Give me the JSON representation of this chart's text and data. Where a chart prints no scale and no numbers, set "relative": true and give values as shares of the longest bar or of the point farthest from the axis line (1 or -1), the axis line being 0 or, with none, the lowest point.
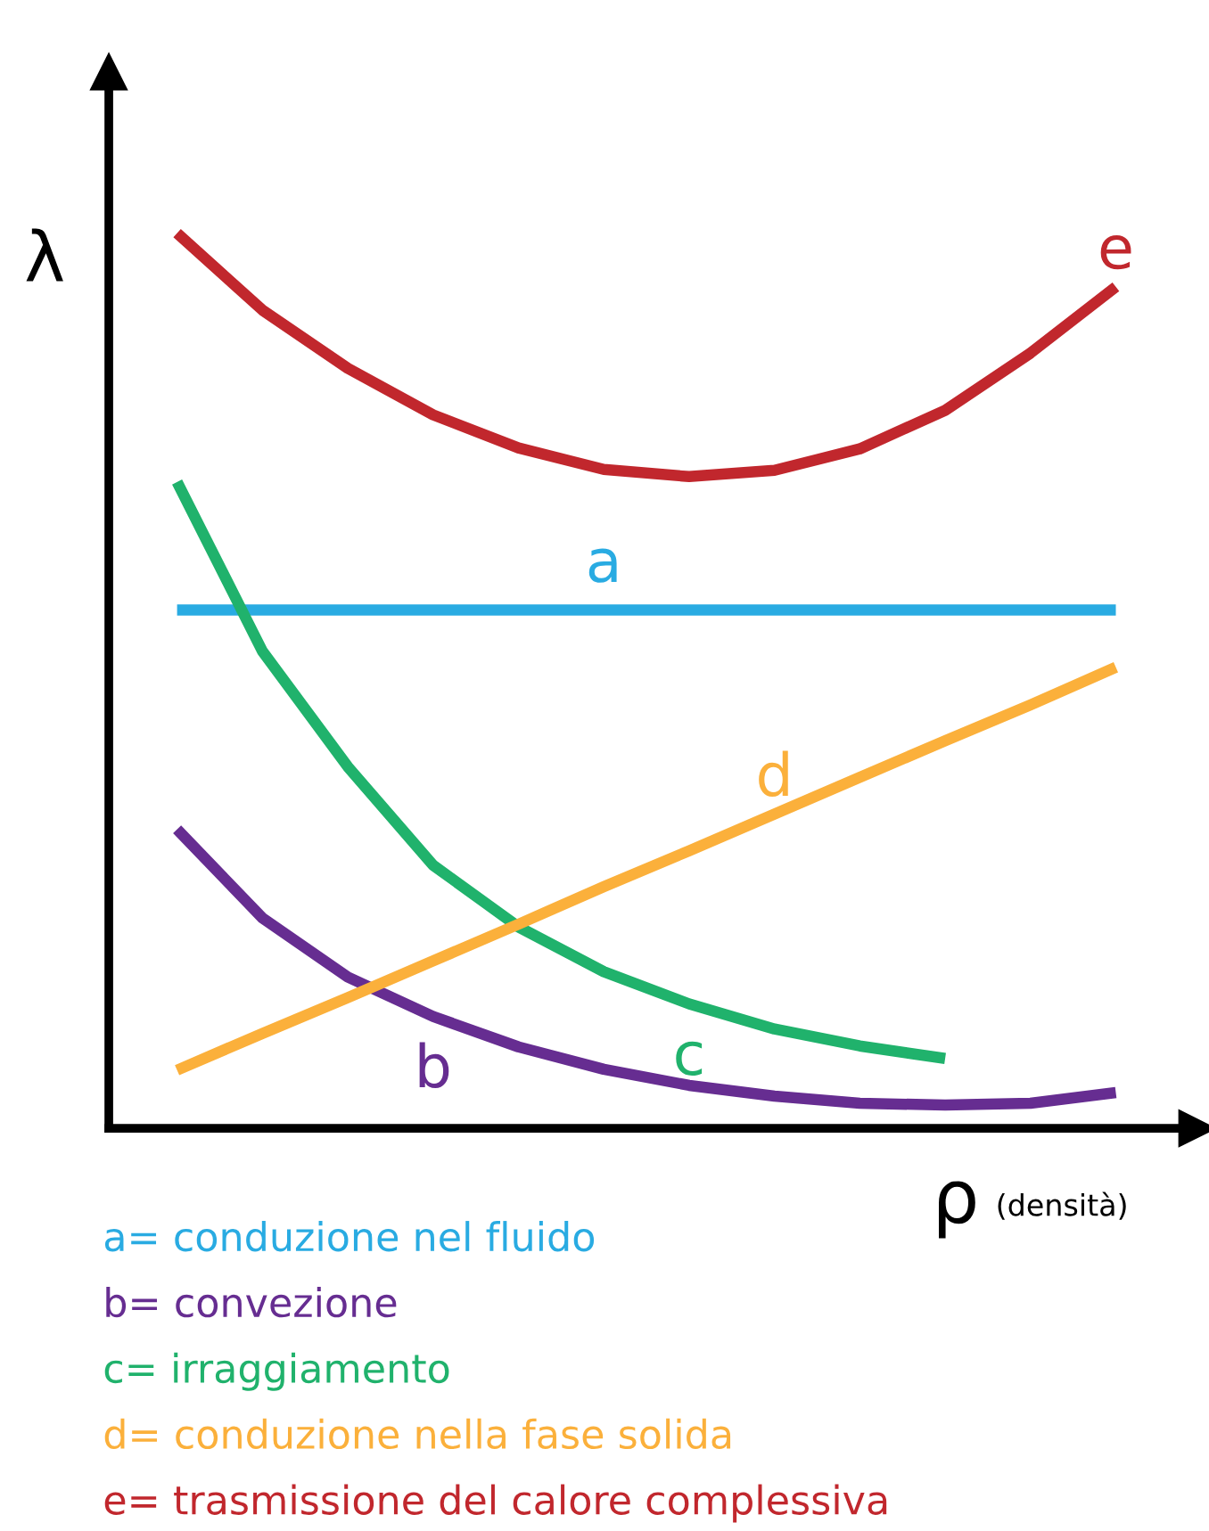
{
  "chart_data": {
    "type": "line",
    "relative": true,
    "xlabel": "ρ (densità)",
    "ylabel": "λ",
    "categories": [
      null,
      null,
      null,
      null,
      null,
      null,
      null,
      null,
      null,
      null,
      null,
      null
    ],
    "series": [
      {
        "name": "a",
        "color": "#29abe2",
        "values": [
          0.579,
          0.579,
          0.579,
          0.579,
          0.579,
          0.579,
          0.579,
          0.579,
          0.579,
          0.579,
          0.579,
          0.579
        ]
      },
      {
        "name": "b",
        "color": "#662d91",
        "values": [
          0.334,
          0.235,
          0.169,
          0.125,
          0.091,
          0.066,
          0.048,
          0.036,
          0.028,
          0.026,
          0.028,
          0.04
        ]
      },
      {
        "name": "c",
        "color": "#20b26c",
        "values": [
          0.722,
          0.533,
          0.404,
          0.294,
          0.225,
          0.175,
          0.139,
          0.111,
          0.092,
          0.078,
          null,
          null
        ]
      },
      {
        "name": "d",
        "color": "#fbb03b",
        "values": [
          0.065,
          0.106,
          0.146,
          0.187,
          0.228,
          0.27,
          0.31,
          0.351,
          0.392,
          0.433,
          0.473,
          0.515
        ]
      },
      {
        "name": "e",
        "color": "#c1272d",
        "values": [
          1.0,
          0.914,
          0.849,
          0.797,
          0.76,
          0.736,
          0.728,
          0.735,
          0.759,
          0.802,
          0.866,
          0.94
        ]
      }
    ],
    "annotations": [
      "a= conduzione nel fluido",
      "b= convezione",
      "c= irraggiamento",
      "d= conduzione nella fase solida",
      "e= trasmissione del calore complessiva"
    ],
    "legend": false,
    "marker": "none",
    "line_style": "solid"
  }
}
